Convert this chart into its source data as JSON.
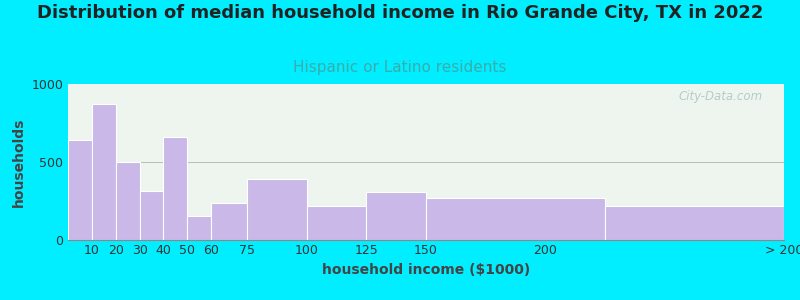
{
  "title": "Distribution of median household income in Rio Grande City, TX in 2022",
  "subtitle": "Hispanic or Latino residents",
  "xlabel": "household income ($1000)",
  "ylabel": "households",
  "bar_color": "#c9b8e8",
  "bar_edgecolor": "#ffffff",
  "background_outer": "#00eeff",
  "background_inner": "#eef5ee",
  "subtitle_color": "#3aacac",
  "title_color": "#222222",
  "axis_label_color": "#444444",
  "watermark_text": "City-Data.com",
  "bin_edges": [
    0,
    10,
    20,
    30,
    40,
    50,
    60,
    75,
    100,
    125,
    150,
    225,
    300
  ],
  "values": [
    640,
    870,
    500,
    315,
    660,
    155,
    240,
    390,
    215,
    305,
    270,
    215
  ],
  "xtick_positions": [
    10,
    20,
    30,
    40,
    50,
    60,
    75,
    100,
    125,
    150,
    200,
    300
  ],
  "xtick_labels": [
    "10",
    "20",
    "30",
    "40",
    "50",
    "60",
    "75",
    "100",
    "125",
    "150",
    "200",
    "> 200"
  ],
  "ylim": [
    0,
    1000
  ],
  "yticks": [
    0,
    500,
    1000
  ],
  "title_fontsize": 13,
  "subtitle_fontsize": 11,
  "axis_label_fontsize": 10,
  "tick_fontsize": 9
}
